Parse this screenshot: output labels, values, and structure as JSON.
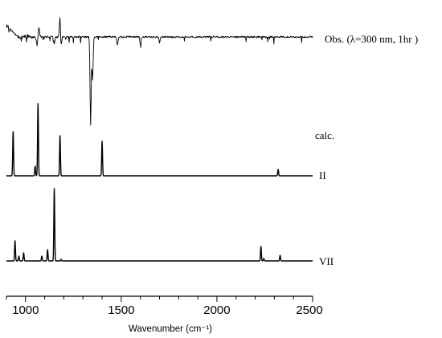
{
  "chart_data": {
    "type": "line",
    "title": "",
    "xlabel": "Wavenumber (cm⁻¹)",
    "ylabel": "",
    "xlim": [
      900,
      2500
    ],
    "x_ticks": [
      1000,
      1500,
      2000,
      2500
    ],
    "x_tick_labels": [
      "1000",
      "1500",
      "2000",
      "2500"
    ],
    "grid": false,
    "series": [
      {
        "name": "Obs. (λ=300 nm, 1hr )",
        "kind": "observed",
        "peaks": [
          {
            "x": 1060,
            "intensity": -0.3
          },
          {
            "x": 1070,
            "intensity": 0.35
          },
          {
            "x": 1150,
            "intensity": -0.25
          },
          {
            "x": 1180,
            "intensity": 0.8
          },
          {
            "x": 1185,
            "intensity": -0.4
          },
          {
            "x": 1340,
            "intensity": -3.2
          },
          {
            "x": 1350,
            "intensity": -1.6
          },
          {
            "x": 1480,
            "intensity": -0.3
          },
          {
            "x": 1600,
            "intensity": -0.25
          },
          {
            "x": 1700,
            "intensity": -0.2
          }
        ]
      },
      {
        "name": "calc.",
        "kind": "annotation"
      },
      {
        "name": "II",
        "kind": "calculated",
        "peaks": [
          {
            "x": 935,
            "intensity": 0.55
          },
          {
            "x": 1050,
            "intensity": 0.12
          },
          {
            "x": 1065,
            "intensity": 0.9
          },
          {
            "x": 1180,
            "intensity": 0.5
          },
          {
            "x": 1400,
            "intensity": 0.43
          },
          {
            "x": 2320,
            "intensity": 0.08
          }
        ]
      },
      {
        "name": "VII",
        "kind": "calculated",
        "peaks": [
          {
            "x": 945,
            "intensity": 0.25
          },
          {
            "x": 965,
            "intensity": 0.06
          },
          {
            "x": 990,
            "intensity": 0.1
          },
          {
            "x": 1085,
            "intensity": 0.06
          },
          {
            "x": 1115,
            "intensity": 0.14
          },
          {
            "x": 1150,
            "intensity": 0.9
          },
          {
            "x": 1185,
            "intensity": 0.02
          },
          {
            "x": 2230,
            "intensity": 0.18
          },
          {
            "x": 2245,
            "intensity": 0.03
          },
          {
            "x": 2330,
            "intensity": 0.07
          }
        ]
      }
    ]
  }
}
